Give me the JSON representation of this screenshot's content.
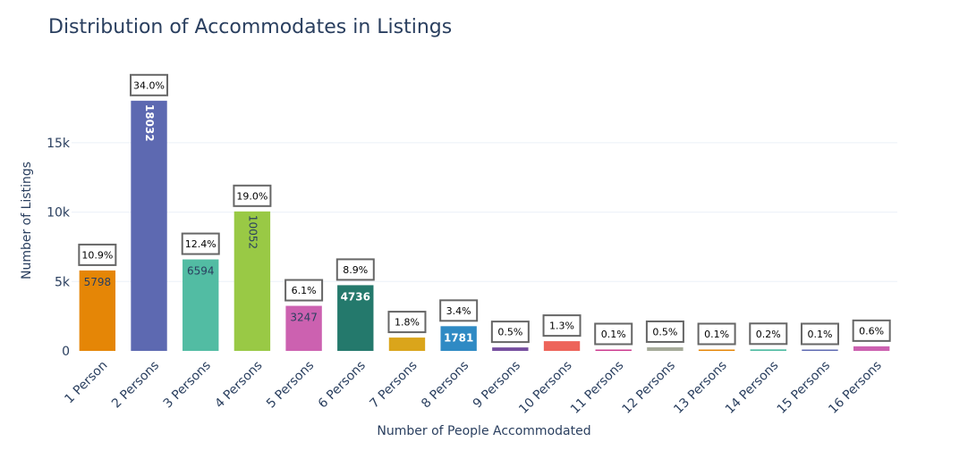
{
  "chart_data": {
    "type": "bar",
    "title": "Distribution of Accommodates in Listings",
    "xlabel": "Number of People Accommodated",
    "ylabel": "Number of Listings",
    "ylim": [
      0,
      19500
    ],
    "y_ticks": [
      0,
      5000,
      10000,
      15000
    ],
    "y_tick_labels": [
      "0",
      "5k",
      "10k",
      "15k"
    ],
    "grid": true,
    "categories": [
      "1 Person",
      "2 Persons",
      "3 Persons",
      "4 Persons",
      "5 Persons",
      "6 Persons",
      "7 Persons",
      "8 Persons",
      "9 Persons",
      "10 Persons",
      "11 Persons",
      "12 Persons",
      "13 Persons",
      "14 Persons",
      "15 Persons",
      "16 Persons"
    ],
    "values": [
      5798,
      18032,
      6594,
      10052,
      3247,
      4736,
      960,
      1781,
      250,
      700,
      60,
      260,
      40,
      110,
      35,
      330
    ],
    "value_labels": [
      "5798",
      "18032",
      "6594",
      "10052",
      "3247",
      "4736",
      "",
      "1781",
      "",
      "",
      "",
      "",
      "",
      "",
      "",
      ""
    ],
    "percent_labels": [
      "10.9%",
      "34.0%",
      "12.4%",
      "19.0%",
      "6.1%",
      "8.9%",
      "1.8%",
      "3.4%",
      "0.5%",
      "1.3%",
      "0.1%",
      "0.5%",
      "0.1%",
      "0.2%",
      "0.1%",
      "0.6%"
    ],
    "colors": [
      "#E58606",
      "#5D69B1",
      "#52BCA3",
      "#99C945",
      "#CC61B0",
      "#24796C",
      "#DAA51B",
      "#2F8AC4",
      "#764E9F",
      "#ED645A",
      "#CC3A8E",
      "#A5AA99",
      "#E58606",
      "#52BCA3",
      "#5D69B1",
      "#CC61B0"
    ],
    "value_label_colors": [
      "#2a3f5f",
      "#ffffff",
      "#2a3f5f",
      "#2a3f5f",
      "#2a3f5f",
      "#ffffff",
      "#2a3f5f",
      "#ffffff",
      "#2a3f5f",
      "#2a3f5f",
      "#2a3f5f",
      "#2a3f5f",
      "#2a3f5f",
      "#2a3f5f",
      "#2a3f5f",
      "#2a3f5f"
    ],
    "value_label_rotated": [
      false,
      true,
      false,
      true,
      false,
      false,
      false,
      false,
      false,
      false,
      false,
      false,
      false,
      false,
      false,
      false
    ]
  }
}
